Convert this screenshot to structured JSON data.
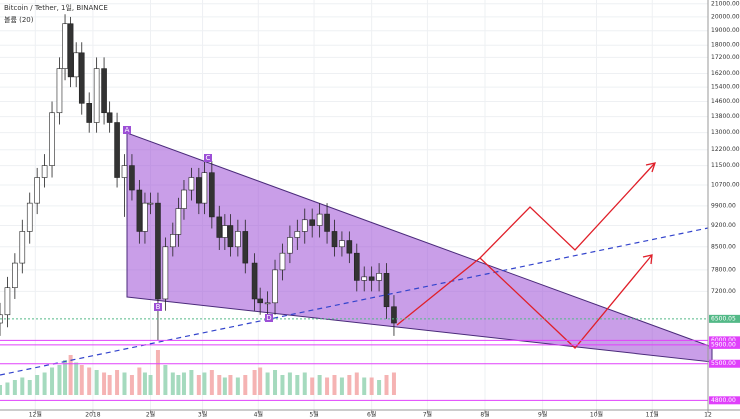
{
  "chart_data": {
    "type": "candlestick",
    "title": "Bitcoin / Tether, 1일, BINANCE",
    "subtitle": "볼륨 (20)",
    "log_scale": true,
    "grid": true,
    "x": [
      0,
      4,
      8,
      12,
      16,
      20,
      24,
      28,
      32,
      35,
      38,
      41,
      44,
      48,
      52,
      56,
      59,
      63,
      67,
      71,
      75,
      78,
      81,
      85,
      89,
      93,
      96,
      99,
      103,
      107,
      110,
      114,
      118,
      121,
      124,
      128,
      132,
      137,
      140,
      144,
      148,
      152,
      156,
      160,
      164,
      168,
      172,
      176,
      180,
      184,
      188,
      192,
      196,
      200,
      204,
      208,
      212
    ],
    "open": [
      6400,
      6600,
      7300,
      8000,
      9000,
      10000,
      11000,
      11500,
      14000,
      16500,
      19500,
      16000,
      17500,
      14500,
      13500,
      16500,
      14000,
      13500,
      11000,
      11500,
      10500,
      9000,
      10000,
      10000,
      7000,
      8500,
      8900,
      9800,
      10500,
      11000,
      10000,
      11200,
      9500,
      8800,
      9200,
      8500,
      9000,
      8000,
      7000,
      6900,
      6900,
      7800,
      8300,
      8800,
      9000,
      9400,
      9200,
      9600,
      9000,
      8500,
      8700,
      8300,
      7500,
      7600,
      7500,
      7700,
      6800
    ],
    "high": [
      6900,
      7600,
      8300,
      9400,
      10400,
      11400,
      12000,
      14600,
      17200,
      20200,
      20000,
      18200,
      18200,
      15100,
      17200,
      17200,
      14600,
      14000,
      12000,
      12000,
      10900,
      10400,
      10400,
      10400,
      8800,
      9300,
      10200,
      10900,
      11400,
      11400,
      11700,
      11700,
      9900,
      9600,
      9600,
      9400,
      9400,
      8300,
      7300,
      7200,
      8100,
      8600,
      9200,
      9400,
      9800,
      9800,
      10000,
      10000,
      9400,
      9000,
      9000,
      8600,
      7900,
      7900,
      8000,
      8000,
      7100
    ],
    "low": [
      6100,
      6300,
      7000,
      7700,
      8600,
      9600,
      10600,
      11000,
      13400,
      15800,
      15400,
      15400,
      13900,
      13000,
      13000,
      13400,
      13000,
      10600,
      9500,
      10100,
      8600,
      8600,
      9600,
      6000,
      6700,
      8200,
      8500,
      9400,
      10100,
      9600,
      9600,
      9100,
      8400,
      8400,
      8200,
      8200,
      7700,
      6700,
      6600,
      6600,
      6600,
      7500,
      8000,
      8400,
      8600,
      8800,
      8800,
      8600,
      8200,
      8200,
      8000,
      7200,
      7200,
      7200,
      7200,
      6500,
      6100
    ],
    "close": [
      6600,
      7300,
      8000,
      9000,
      10000,
      11000,
      11500,
      14000,
      16500,
      19500,
      16000,
      17500,
      14500,
      13500,
      16500,
      14000,
      13500,
      11000,
      11500,
      10500,
      9000,
      10000,
      10000,
      7000,
      8500,
      8900,
      9800,
      10500,
      11000,
      10000,
      11200,
      9500,
      8800,
      9200,
      8500,
      9000,
      8000,
      7000,
      6900,
      6900,
      7800,
      8300,
      8800,
      9000,
      9400,
      9200,
      9600,
      9000,
      8500,
      8700,
      8300,
      7500,
      7600,
      7500,
      7700,
      6800,
      6400
    ],
    "volume": [
      20,
      25,
      30,
      35,
      30,
      40,
      45,
      55,
      60,
      70,
      80,
      65,
      60,
      55,
      50,
      45,
      40,
      50,
      45,
      40,
      55,
      45,
      40,
      90,
      60,
      45,
      40,
      45,
      50,
      40,
      45,
      50,
      40,
      35,
      40,
      35,
      40,
      50,
      55,
      45,
      50,
      40,
      45,
      40,
      45,
      35,
      40,
      35,
      40,
      35,
      40,
      45,
      35,
      35,
      30,
      40,
      45
    ],
    "xlim": [
      0,
      381
    ],
    "xticks": [
      {
        "value": 19,
        "label": "12월"
      },
      {
        "value": 50,
        "label": "2018"
      },
      {
        "value": 81,
        "label": "2월"
      },
      {
        "value": 109,
        "label": "3월"
      },
      {
        "value": 139,
        "label": "4월"
      },
      {
        "value": 169,
        "label": "5월"
      },
      {
        "value": 200,
        "label": "6월"
      },
      {
        "value": 230,
        "label": "7월"
      },
      {
        "value": 261,
        "label": "8월"
      },
      {
        "value": 292,
        "label": "9월"
      },
      {
        "value": 321,
        "label": "10월"
      },
      {
        "value": 351,
        "label": "11월"
      },
      {
        "value": 381,
        "label": "12"
      }
    ],
    "ylim": [
      4630,
      21300
    ],
    "yticks": [
      {
        "value": 21000,
        "label": "21000.00"
      },
      {
        "value": 20000,
        "label": "20000.00"
      },
      {
        "value": 19000,
        "label": "19000.00"
      },
      {
        "value": 18000,
        "label": "18000.00"
      },
      {
        "value": 17200,
        "label": "17200.00"
      },
      {
        "value": 16200,
        "label": "16200.00"
      },
      {
        "value": 15400,
        "label": "15400.00"
      },
      {
        "value": 14600,
        "label": "14600.00"
      },
      {
        "value": 13800,
        "label": "13800.00"
      },
      {
        "value": 13000,
        "label": "13000.00"
      },
      {
        "value": 12200,
        "label": "12200.00"
      },
      {
        "value": 11500,
        "label": "11500.00"
      },
      {
        "value": 10700,
        "label": "10700.00"
      },
      {
        "value": 9900,
        "label": "9900.00"
      },
      {
        "value": 9200,
        "label": "9200.00"
      },
      {
        "value": 8500,
        "label": "8500.00"
      },
      {
        "value": 7800,
        "label": "7800.00"
      },
      {
        "value": 7200,
        "label": "7200.00"
      }
    ],
    "price_lines": [
      {
        "value": 6500.05,
        "label": "6500.05",
        "color": "#53b987"
      },
      {
        "value": 6000,
        "label": "6000.00",
        "color": "#e040fb"
      },
      {
        "value": 5900,
        "label": "5900.00",
        "color": "#e040fb"
      },
      {
        "value": 5500,
        "label": "5500.00",
        "color": "#e040fb"
      },
      {
        "value": 4800,
        "label": "4800.00",
        "color": "#e040fb"
      }
    ],
    "annotations": [
      "A",
      "B",
      "C",
      "D"
    ]
  }
}
